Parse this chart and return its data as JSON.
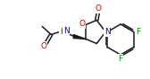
{
  "bg_color": "#ffffff",
  "bond_color": "#1a1a1a",
  "atom_colors": {
    "O": "#cc0000",
    "N": "#0000cc",
    "F": "#008800",
    "C": "#1a1a1a",
    "H": "#1a1a1a"
  },
  "figsize": [
    1.68,
    0.88
  ],
  "dpi": 100
}
